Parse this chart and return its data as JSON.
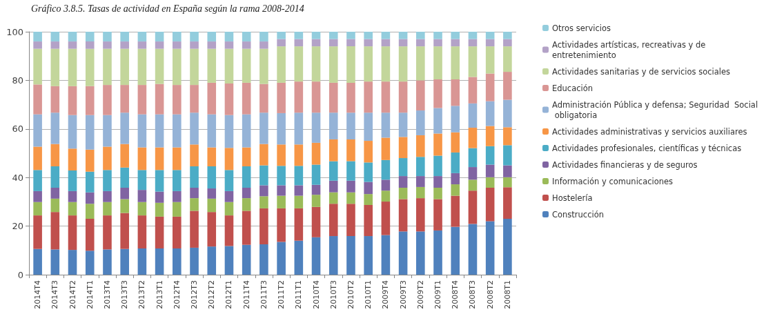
{
  "chart_data": {
    "type": "bar",
    "stacked": true,
    "title": "Gráfico 3.8.5. Tasas de actividad en España según la rama 2008-2014",
    "categories": [
      "2014T4",
      "2014T3",
      "2014T2",
      "2014T1",
      "2013T4",
      "2013T3",
      "2013T2",
      "2013T1",
      "2012T4",
      "2012T3",
      "2012T2",
      "2012T1",
      "2011T4",
      "2011T3",
      "2011T2",
      "2011T1",
      "2010T4",
      "2010T3",
      "2010T2",
      "2010T1",
      "2009T4",
      "2009T3",
      "2009T2",
      "2009T1",
      "2008T4",
      "2008T3",
      "2008T2",
      "2008T1"
    ],
    "ylim": [
      0,
      100
    ],
    "yticks": [
      0,
      20,
      40,
      60,
      80,
      100
    ],
    "grid": "y",
    "legend": "right",
    "series": [
      {
        "name": "Construcción",
        "color": "#4f81bd",
        "values": [
          10.6,
          10.4,
          10.2,
          9.9,
          10.4,
          10.6,
          10.8,
          10.8,
          10.8,
          11.1,
          11.6,
          11.8,
          12.3,
          12.5,
          13.5,
          14.0,
          15.4,
          15.9,
          15.9,
          15.9,
          16.3,
          17.8,
          17.8,
          18.2,
          19.7,
          20.9,
          22.0,
          23.0
        ]
      },
      {
        "name": "Hostelería",
        "color": "#c0504d",
        "values": [
          13.8,
          15.4,
          14.2,
          13.1,
          14.0,
          14.8,
          13.6,
          13.1,
          13.1,
          15.2,
          14.2,
          12.6,
          14.0,
          14.8,
          13.8,
          13.3,
          12.5,
          13.3,
          13.3,
          12.8,
          13.8,
          13.3,
          13.7,
          12.9,
          12.8,
          13.7,
          13.8,
          13.0
        ]
      },
      {
        "name": "Información y comunicaciones",
        "color": "#9bbb59",
        "values": [
          5.5,
          5.5,
          5.5,
          6.2,
          5.5,
          5.7,
          5.5,
          5.7,
          6.0,
          5.2,
          5.5,
          5.5,
          5.2,
          5.0,
          5.2,
          5.2,
          5.0,
          4.7,
          4.7,
          4.5,
          4.5,
          4.7,
          4.6,
          4.7,
          4.7,
          4.5,
          4.3,
          4.1
        ]
      },
      {
        "name": "Actividades financieras y de seguros",
        "color": "#8064a2",
        "values": [
          4.5,
          4.5,
          4.5,
          4.7,
          4.5,
          4.7,
          5.0,
          4.6,
          4.5,
          4.3,
          4.2,
          4.5,
          4.3,
          4.5,
          4.3,
          4.3,
          4.1,
          4.8,
          4.8,
          5.0,
          4.5,
          4.8,
          4.5,
          4.8,
          4.6,
          5.2,
          5.2,
          4.9
        ]
      },
      {
        "name": "Actividades profesionales, científicas y técnicas",
        "color": "#4bacc6",
        "values": [
          8.7,
          8.8,
          8.5,
          8.5,
          8.7,
          8.3,
          8.2,
          8.9,
          8.7,
          8.8,
          9.1,
          8.7,
          8.8,
          8.2,
          8.0,
          8.0,
          8.3,
          8.0,
          8.0,
          8.0,
          8.1,
          7.4,
          7.9,
          8.4,
          8.5,
          7.8,
          7.6,
          8.3
        ]
      },
      {
        "name": "Actividades administrativas y servicios auxiliares",
        "color": "#f79646",
        "values": [
          9.6,
          9.2,
          9.0,
          9.1,
          9.6,
          9.7,
          9.3,
          9.3,
          9.3,
          9.0,
          7.8,
          9.1,
          7.8,
          8.8,
          8.8,
          8.8,
          9.0,
          9.0,
          9.0,
          8.9,
          9.2,
          8.7,
          8.9,
          9.1,
          8.3,
          8.4,
          8.3,
          7.4
        ]
      },
      {
        "name": "Administración Pública y defensa; Seguridad  Social obligatoria",
        "color": "#95b3d7",
        "values": [
          13.3,
          12.9,
          13.8,
          14.2,
          13.0,
          12.9,
          13.6,
          13.6,
          13.6,
          13.1,
          13.6,
          13.5,
          13.6,
          12.9,
          12.9,
          13.1,
          12.4,
          11.0,
          11.0,
          11.6,
          10.3,
          10.0,
          10.2,
          10.5,
          10.9,
          10.0,
          10.2,
          11.3
        ]
      },
      {
        "name": "Educación",
        "color": "#d99694",
        "values": [
          12.3,
          10.9,
          11.9,
          11.9,
          12.4,
          11.4,
          12.1,
          12.5,
          12.1,
          11.4,
          13.0,
          13.0,
          13.0,
          11.8,
          12.5,
          12.8,
          12.8,
          12.3,
          12.3,
          12.8,
          12.8,
          12.8,
          12.4,
          11.8,
          10.9,
          10.9,
          11.4,
          11.5
        ]
      },
      {
        "name": "Actividades sanitarias y de servicios sociales",
        "color": "#c3d69b",
        "values": [
          14.7,
          15.4,
          15.4,
          15.4,
          14.9,
          14.9,
          14.9,
          14.5,
          14.9,
          14.9,
          14.0,
          14.3,
          14.0,
          14.5,
          15.0,
          14.5,
          14.5,
          15.0,
          15.0,
          14.5,
          14.5,
          14.5,
          14.0,
          13.6,
          13.6,
          12.6,
          11.2,
          10.5
        ]
      },
      {
        "name": "Actividades artísticas, recreativas y de entretenimiento",
        "color": "#b3a2c7",
        "values": [
          3,
          3,
          3,
          3,
          3,
          3,
          3,
          3,
          3,
          3,
          3,
          3,
          3,
          3,
          3,
          3,
          3,
          3,
          3,
          3,
          3,
          3,
          3,
          3,
          3,
          3,
          3,
          3
        ]
      },
      {
        "name": "Otros servicios",
        "color": "#93cddd",
        "values": [
          4,
          4,
          4,
          4,
          4,
          4,
          4,
          4,
          4,
          4,
          4,
          4,
          4,
          4,
          3,
          3,
          3,
          3,
          3,
          3,
          3,
          3,
          3,
          3,
          3,
          3,
          3,
          3
        ]
      }
    ]
  }
}
